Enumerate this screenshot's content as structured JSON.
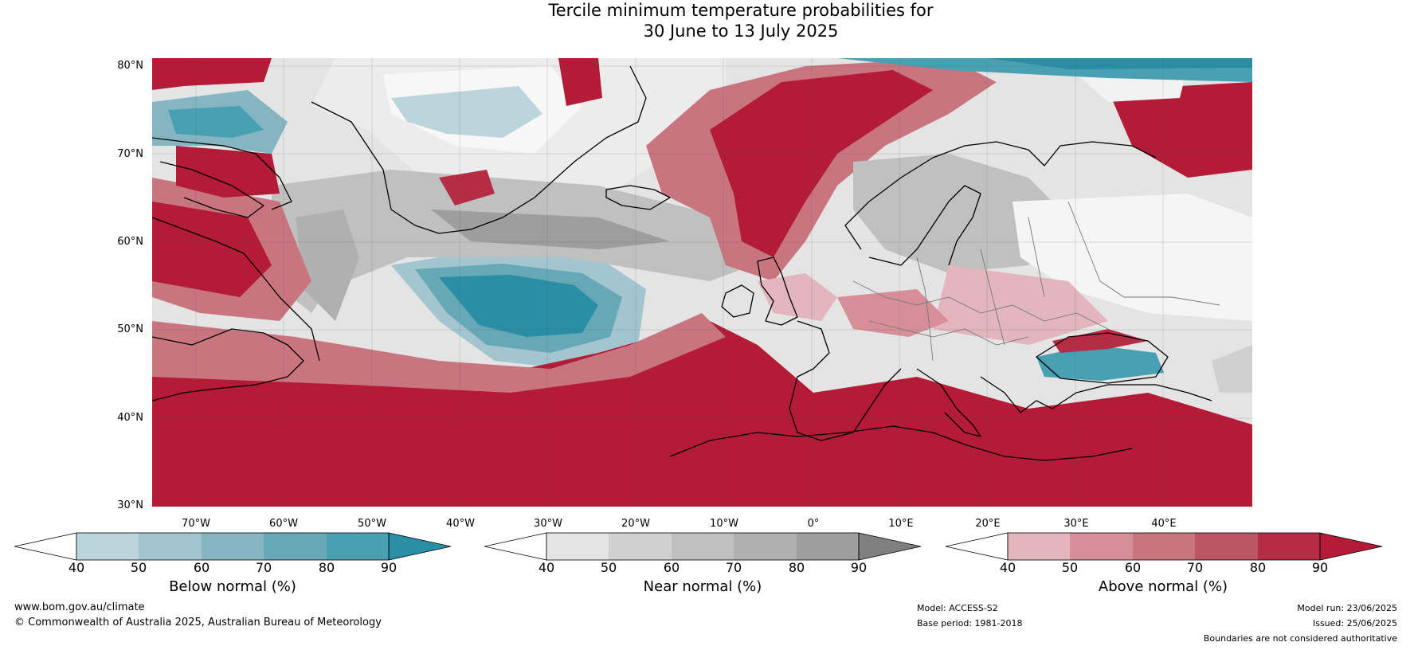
{
  "title": {
    "line1": "Tercile minimum temperature probabilities for",
    "line2": "30 June to 13 July 2025"
  },
  "axes": {
    "lat_labels": [
      "80°N",
      "70°N",
      "60°N",
      "50°N",
      "40°N",
      "30°N"
    ],
    "lon_labels": [
      "70°W",
      "60°W",
      "50°W",
      "40°W",
      "30°W",
      "20°W",
      "10°W",
      "0°",
      "10°E",
      "20°E",
      "30°E",
      "40°E"
    ]
  },
  "map": {
    "region": "North Atlantic and Europe",
    "categories": [
      {
        "name": "Below normal",
        "color": "#2a8ea5"
      },
      {
        "name": "Near normal",
        "color": "#8a8a8a"
      },
      {
        "name": "Above normal",
        "color": "#b31b36"
      }
    ]
  },
  "colorbars": [
    {
      "label": "Below normal (%)",
      "ticks": [
        "40",
        "50",
        "60",
        "70",
        "80",
        "90"
      ],
      "colors": [
        "#ffffff",
        "#bcd4dc",
        "#a3c5cf",
        "#86b5c2",
        "#66a8b6",
        "#48a0b3",
        "#2a8ea5"
      ]
    },
    {
      "label": "Near normal (%)",
      "ticks": [
        "40",
        "50",
        "60",
        "70",
        "80",
        "90"
      ],
      "colors": [
        "#ffffff",
        "#e4e4e4",
        "#d0d0d0",
        "#c0c0c0",
        "#b0b0b0",
        "#9e9e9e",
        "#808080"
      ]
    },
    {
      "label": "Above normal (%)",
      "ticks": [
        "40",
        "50",
        "60",
        "70",
        "80",
        "90"
      ],
      "colors": [
        "#ffffff",
        "#e3b5bd",
        "#d68f99",
        "#c97580",
        "#bd5565",
        "#b52d44",
        "#b31b36"
      ]
    }
  ],
  "footer": {
    "website": "www.bom.gov.au/climate",
    "copyright": "© Commonwealth of Australia 2025, Australian Bureau of Meteorology",
    "model": "Model: ACCESS-S2",
    "base_period": "Base period: 1981-2018",
    "model_run": "Model run: 23/06/2025",
    "issued": "Issued: 25/06/2025",
    "disclaimer": "Boundaries are not considered authoritative"
  }
}
